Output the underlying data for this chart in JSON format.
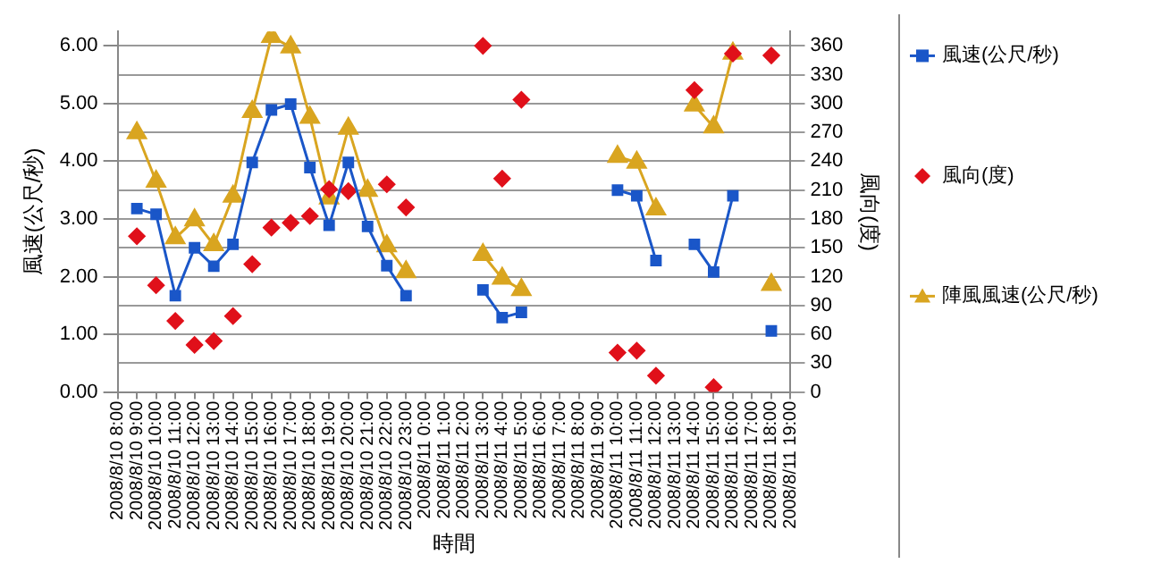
{
  "chart_data": {
    "type": "line",
    "xlabel": "時間",
    "ylabel": "風速(公尺/秒)",
    "y2label": "風向(度)",
    "categories": [
      "2008/8/10 8:00",
      "2008/8/10 9:00",
      "2008/8/10 10:00",
      "2008/8/10 11:00",
      "2008/8/10 12:00",
      "2008/8/10 13:00",
      "2008/8/10 14:00",
      "2008/8/10 15:00",
      "2008/8/10 16:00",
      "2008/8/10 17:00",
      "2008/8/10 18:00",
      "2008/8/10 19:00",
      "2008/8/10 20:00",
      "2008/8/10 21:00",
      "2008/8/10 22:00",
      "2008/8/10 23:00",
      "2008/8/11 0:00",
      "2008/8/11 1:00",
      "2008/8/11 2:00",
      "2008/8/11 3:00",
      "2008/8/11 4:00",
      "2008/8/11 5:00",
      "2008/8/11 6:00",
      "2008/8/11 7:00",
      "2008/8/11 8:00",
      "2008/8/11 9:00",
      "2008/8/11 10:00",
      "2008/8/11 11:00",
      "2008/8/11 12:00",
      "2008/8/11 13:00",
      "2008/8/11 14:00",
      "2008/8/11 15:00",
      "2008/8/11 16:00",
      "2008/8/11 17:00",
      "2008/8/11 18:00",
      "2008/8/11 19:00"
    ],
    "series": [
      {
        "name": "風速(公尺/秒)",
        "type": "line",
        "marker": "square",
        "color": "#1a56c8",
        "values": [
          null,
          3.18,
          3.08,
          1.67,
          2.5,
          2.18,
          2.56,
          3.98,
          4.89,
          4.99,
          3.89,
          2.89,
          3.98,
          2.87,
          2.19,
          1.67,
          null,
          null,
          null,
          1.77,
          1.29,
          1.38,
          null,
          null,
          null,
          null,
          3.5,
          3.4,
          2.28,
          null,
          2.56,
          2.08,
          3.4,
          null,
          1.06,
          null
        ]
      },
      {
        "name": "風向(度)",
        "type": "scatter",
        "marker": "diamond",
        "axis": "y2",
        "color": "#e0101a",
        "values": [
          null,
          162,
          111,
          74,
          49,
          53,
          79,
          133,
          171,
          176,
          183,
          211,
          209,
          null,
          216,
          192,
          null,
          null,
          null,
          360,
          222,
          304,
          null,
          null,
          null,
          null,
          41,
          43,
          17,
          null,
          314,
          5,
          352,
          null,
          350,
          null
        ]
      },
      {
        "name": "陣風風速(公尺/秒)",
        "type": "line",
        "marker": "triangle",
        "color": "#d9a520",
        "values": [
          null,
          4.49,
          3.65,
          2.67,
          2.98,
          2.55,
          3.39,
          4.86,
          6.16,
          5.98,
          4.76,
          3.36,
          4.57,
          3.49,
          2.53,
          2.08,
          null,
          null,
          null,
          2.38,
          1.97,
          1.77,
          null,
          null,
          null,
          null,
          4.08,
          3.98,
          3.17,
          null,
          4.97,
          4.59,
          5.87,
          null,
          1.86,
          null
        ]
      }
    ],
    "ylim": [
      0,
      6.25
    ],
    "yticks": [
      {
        "value": 0,
        "label": "0.00"
      },
      {
        "value": 1,
        "label": "1.00"
      },
      {
        "value": 2,
        "label": "2.00"
      },
      {
        "value": 3,
        "label": "3.00"
      },
      {
        "value": 4,
        "label": "4.00"
      },
      {
        "value": 5,
        "label": "5.00"
      },
      {
        "value": 6,
        "label": "6.00"
      }
    ],
    "y2lim": [
      0,
      375
    ],
    "y2ticks": [
      0,
      30,
      60,
      90,
      120,
      150,
      180,
      210,
      240,
      270,
      300,
      330,
      360
    ],
    "grid": "y",
    "legend": "right"
  }
}
